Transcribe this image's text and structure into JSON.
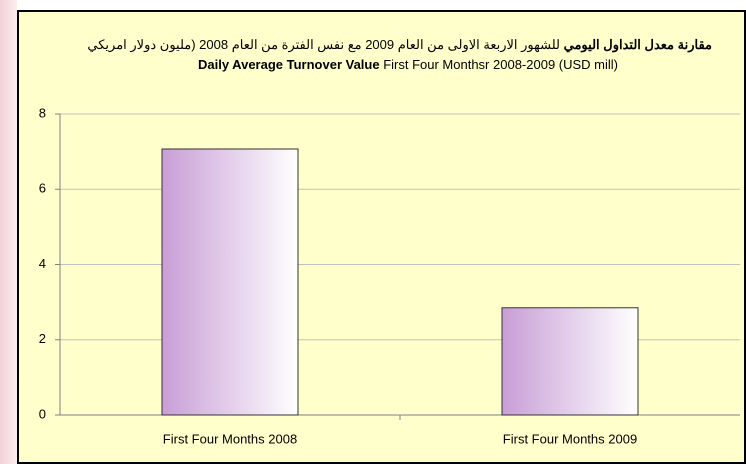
{
  "chart_data": {
    "type": "bar",
    "title_lines": [
      [
        "مقارنة معدل التداول اليومي",
        "للشهور الاربعة الاولى من العام 2009 مع نفس الفترة من العام 2008 (مليون دولار امريكي"
      ],
      [
        "Daily Average Turnover Value",
        "First Four Monthsr 2008-2009 (USD mill)"
      ]
    ],
    "categories": [
      "First Four Months 2008",
      "First Four Months 2009"
    ],
    "values": [
      7.07,
      2.85
    ],
    "color": "#c89ed6",
    "ylim": [
      0,
      8
    ],
    "yticks": [
      0,
      2,
      4,
      6,
      8
    ],
    "grid": true
  }
}
